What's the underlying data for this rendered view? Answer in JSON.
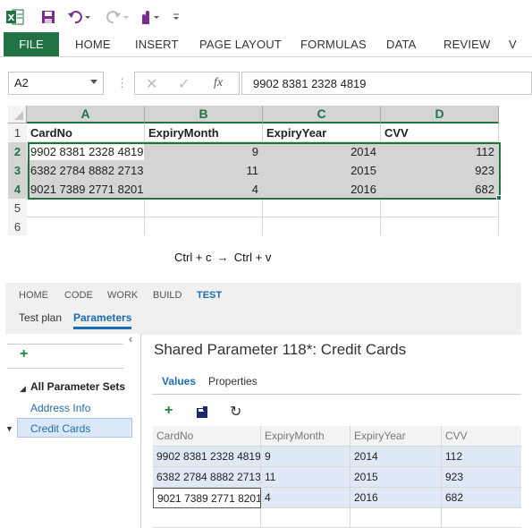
{
  "excel": {
    "ribbon_tabs": [
      "FILE",
      "HOME",
      "INSERT",
      "PAGE LAYOUT",
      "FORMULAS",
      "DATA",
      "REVIEW",
      "V"
    ],
    "name_box": "A2",
    "formula_bar_value": "9902 8381 2328 4819",
    "fx_label": "fx",
    "columns": [
      "A",
      "B",
      "C",
      "D"
    ],
    "row_numbers": [
      "1",
      "2",
      "3",
      "4",
      "5",
      "6"
    ],
    "headers": [
      "CardNo",
      "ExpiryMonth",
      "ExpiryYear",
      "CVV"
    ],
    "rows": [
      [
        "9902 8381 2328 4819",
        "9",
        "2014",
        "112"
      ],
      [
        "6382 2784 8882 2713",
        "11",
        "2015",
        "923"
      ],
      [
        "9021 7389 2771 8201",
        "4",
        "2016",
        "682"
      ]
    ]
  },
  "instruction": {
    "copy": "Ctrl + c",
    "paste": "Ctrl + v"
  },
  "tfs": {
    "nav_tabs": [
      "HOME",
      "CODE",
      "WORK",
      "BUILD",
      "TEST"
    ],
    "sub_tabs": [
      "Test plan",
      "Parameters"
    ],
    "sidebar": {
      "group_label": "All Parameter Sets",
      "items": [
        "Address Info",
        "Credit Cards"
      ],
      "selected": "Credit Cards"
    },
    "title": "Shared Parameter 118*: Credit Cards",
    "tabs": [
      "Values",
      "Properties"
    ],
    "columns": [
      "CardNo",
      "ExpiryMonth",
      "ExpiryYear",
      "CVV"
    ],
    "rows": [
      [
        "9902 8381 2328 4819",
        "9",
        "2014",
        "112"
      ],
      [
        "6382 2784 8882 2713",
        "11",
        "2015",
        "923"
      ],
      [
        "9021 7389 2771 8201",
        "4",
        "2016",
        "682"
      ]
    ],
    "colors": {
      "accent": "#1e6db5",
      "excel_green": "#217346",
      "selection_row": "#dfe9f5"
    }
  }
}
